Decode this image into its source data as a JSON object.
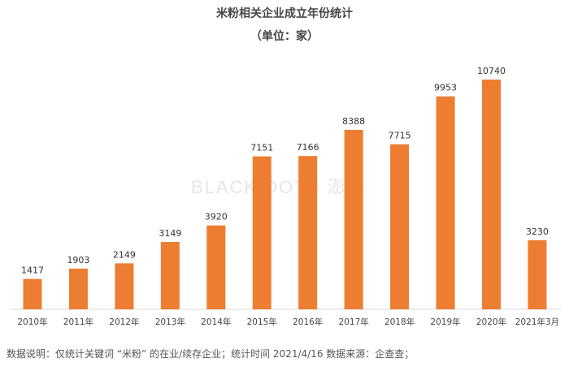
{
  "chart_data": {
    "type": "bar",
    "title": "米粉相关企业成立年份统计",
    "subtitle": "（单位：家）",
    "categories": [
      "2010年",
      "2011年",
      "2012年",
      "2013年",
      "2014年",
      "2015年",
      "2016年",
      "2017年",
      "2018年",
      "2019年",
      "2020年",
      "2021年3月"
    ],
    "values": [
      1417,
      1903,
      2149,
      3149,
      3920,
      7151,
      7166,
      8388,
      7715,
      9953,
      10740,
      3230
    ],
    "color": "#ED7D31",
    "ylim": [
      0,
      11000
    ],
    "grid": false,
    "data_labels": true
  },
  "footer": {
    "note": "数据说明：仅统计关键词 “米粉” 的在业/续存企业；统计时间  2021/4/16   数据来源：企查查；"
  },
  "watermark": {
    "text": "BLACK DOTS 澎湃"
  }
}
